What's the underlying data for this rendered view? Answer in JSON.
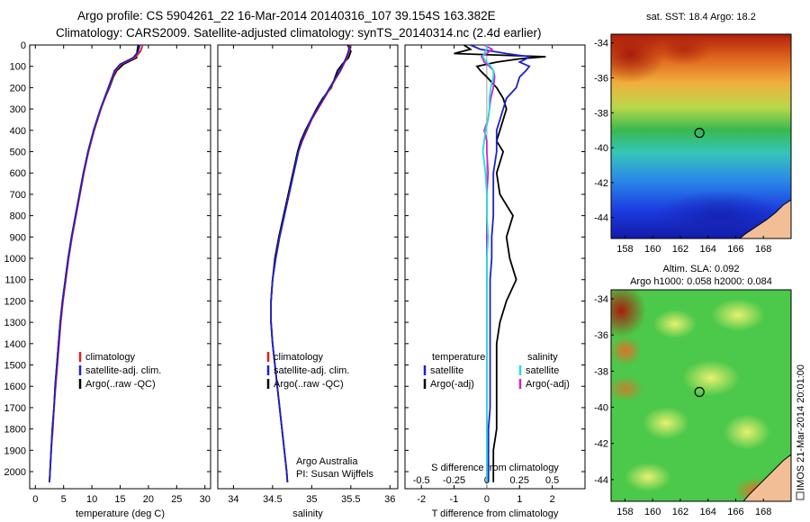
{
  "header": {
    "line1": "Argo profile: CS 5904261_22 16-Mar-2014 20140316_107 39.154S 163.382E",
    "line2": "Climatology: CARS2009. Satellite-adjusted climatology: synTS_20140314.nc (2.4d earlier)"
  },
  "credit": {
    "argo_australia": "Argo Australia",
    "pi": "PI: Susan Wijffels",
    "imos": "IMOS 21-Mar-2014 20:01:00"
  },
  "colors": {
    "climatology": "#e0201e",
    "satellite": "#1e22c8",
    "argo": "#000000",
    "sat_salinity": "#22dede",
    "argo_salinity": "#d020d0",
    "land": "#f2be96"
  },
  "chart_data": [
    {
      "type": "line",
      "id": "temperature",
      "xlabel": "temperature (deg C)",
      "ylabel": "",
      "xlim": [
        -1,
        31
      ],
      "ylim": [
        2080,
        0
      ],
      "xticks": [
        0,
        5,
        10,
        15,
        20,
        25,
        30
      ],
      "yticks": [
        0,
        100,
        200,
        300,
        400,
        500,
        600,
        700,
        800,
        900,
        1000,
        1100,
        1200,
        1300,
        1400,
        1500,
        1600,
        1700,
        1800,
        1900,
        2000
      ],
      "legend": {
        "position": "lower-middle",
        "entries": [
          "climatology",
          "satellite-adj. clim.",
          "Argo(..raw -QC)"
        ]
      },
      "y": [
        0,
        30,
        60,
        90,
        120,
        150,
        200,
        250,
        300,
        350,
        400,
        500,
        600,
        700,
        800,
        900,
        1000,
        1100,
        1200,
        1300,
        1400,
        1500,
        1600,
        1700,
        1800,
        1900,
        2000,
        2050
      ],
      "series": [
        {
          "name": "climatology",
          "x": [
            19.0,
            18.6,
            17.6,
            15.2,
            14.2,
            13.7,
            13.0,
            12.3,
            11.6,
            11.0,
            10.4,
            9.4,
            8.6,
            7.9,
            7.2,
            6.5,
            5.9,
            5.4,
            4.9,
            4.5,
            4.2,
            3.9,
            3.6,
            3.3,
            3.1,
            2.8,
            2.6,
            2.5
          ]
        },
        {
          "name": "satellite-adj. clim.",
          "x": [
            18.5,
            18.2,
            17.3,
            15.0,
            14.0,
            13.6,
            12.9,
            12.2,
            11.5,
            10.9,
            10.3,
            9.3,
            8.5,
            7.8,
            7.1,
            6.4,
            5.8,
            5.3,
            4.8,
            4.4,
            4.1,
            3.8,
            3.5,
            3.3,
            3.0,
            2.8,
            2.6,
            2.5
          ]
        },
        {
          "name": "Argo(..raw -QC)",
          "x": [
            18.2,
            18.0,
            17.9,
            15.6,
            14.4,
            13.8,
            13.1,
            12.3,
            11.6,
            11.0,
            10.4,
            9.4,
            8.5,
            7.8,
            7.1,
            6.4,
            5.8,
            5.3,
            4.8,
            4.4,
            4.1,
            3.8,
            3.5,
            3.3,
            3.0,
            2.8,
            2.6,
            2.5
          ]
        }
      ]
    },
    {
      "type": "line",
      "id": "salinity",
      "xlabel": "salinity",
      "ylabel": "",
      "xlim": [
        33.8,
        36.1
      ],
      "ylim": [
        2080,
        0
      ],
      "xticks": [
        34,
        34.5,
        35,
        35.5,
        36
      ],
      "legend": {
        "position": "lower-middle",
        "entries": [
          "climatology",
          "satellite-adj. clim.",
          "Argo(..raw -QC)"
        ]
      },
      "y": [
        0,
        30,
        60,
        90,
        120,
        150,
        200,
        250,
        300,
        350,
        400,
        450,
        500,
        600,
        700,
        800,
        900,
        1000,
        1100,
        1200,
        1300,
        1400,
        1500,
        1600,
        1700,
        1800,
        1900,
        2000,
        2050
      ],
      "series": [
        {
          "name": "climatology",
          "x": [
            35.49,
            35.48,
            35.45,
            35.41,
            35.37,
            35.32,
            35.24,
            35.16,
            35.08,
            35.0,
            34.94,
            34.88,
            34.83,
            34.77,
            34.71,
            34.65,
            34.59,
            34.54,
            34.5,
            34.48,
            34.48,
            34.5,
            34.53,
            34.56,
            34.59,
            34.62,
            34.65,
            34.68,
            34.69
          ]
        },
        {
          "name": "satellite-adj. clim.",
          "x": [
            35.48,
            35.47,
            35.44,
            35.4,
            35.36,
            35.31,
            35.23,
            35.15,
            35.07,
            34.99,
            34.93,
            34.87,
            34.83,
            34.77,
            34.71,
            34.65,
            34.59,
            34.54,
            34.5,
            34.48,
            34.48,
            34.5,
            34.53,
            34.56,
            34.59,
            34.62,
            34.65,
            34.68,
            34.69
          ]
        },
        {
          "name": "Argo(..raw -QC)",
          "x": [
            35.46,
            35.5,
            35.47,
            35.39,
            35.33,
            35.3,
            35.25,
            35.14,
            35.06,
            34.99,
            34.92,
            34.86,
            34.82,
            34.76,
            34.7,
            34.64,
            34.58,
            34.53,
            34.5,
            34.48,
            34.48,
            34.5,
            34.53,
            34.56,
            34.59,
            34.62,
            34.65,
            34.68,
            34.69
          ]
        }
      ]
    },
    {
      "type": "line",
      "id": "difference",
      "xlabel": "T difference from climatology",
      "xlabel_top": "S difference from climatology",
      "xlim": [
        -2.5,
        3.0
      ],
      "ylim": [
        2080,
        0
      ],
      "xticks": [
        -2,
        -1,
        0,
        1,
        2
      ],
      "xticks_salinity": [
        -0.5,
        -0.25,
        0,
        0.25,
        0.5
      ],
      "legend": {
        "position": "lower-middle",
        "entries": [
          "temperature",
          "satellite",
          "Argo(-adj)",
          "salinity",
          "satellite",
          "Argo(-adj)"
        ]
      },
      "y": [
        0,
        20,
        40,
        55,
        65,
        80,
        100,
        120,
        150,
        200,
        250,
        300,
        350,
        400,
        450,
        500,
        600,
        700,
        800,
        900,
        1000,
        1100,
        1200,
        1300,
        1400,
        1500,
        1600,
        1700,
        1800,
        1900,
        2000,
        2050
      ],
      "series": [
        {
          "name": "temperature satellite",
          "x": [
            -0.5,
            -0.2,
            0.6,
            1.3,
            1.2,
            1.0,
            1.3,
            1.2,
            1.0,
            0.9,
            0.6,
            0.5,
            0.4,
            0.3,
            0.3,
            0.3,
            0.2,
            0.2,
            0.2,
            0.15,
            0.15,
            0.1,
            0.1,
            0.1,
            0.1,
            0.1,
            0.1,
            0.1,
            0.05,
            0.05,
            0.05,
            0.05
          ]
        },
        {
          "name": "temperature Argo(-adj)",
          "x": [
            -0.7,
            -0.5,
            -1.0,
            1.8,
            1.0,
            0.3,
            -0.3,
            -0.2,
            0.0,
            0.3,
            0.5,
            0.6,
            0.5,
            0.4,
            0.3,
            0.5,
            0.3,
            0.4,
            0.8,
            0.6,
            0.7,
            0.9,
            0.6,
            0.4,
            0.3,
            0.3,
            0.3,
            0.3,
            0.3,
            0.2,
            0.2,
            0.2
          ]
        },
        {
          "name": "salinity satellite",
          "x": [
            0.0,
            0.0,
            -0.02,
            -0.03,
            -0.02,
            0.0,
            0.03,
            0.05,
            0.05,
            0.03,
            0.02,
            0.02,
            0.01,
            -0.01,
            -0.02,
            -0.03,
            -0.01,
            0.0,
            0.0,
            0.01,
            0.0,
            0.0,
            0.0,
            0.0,
            0.0,
            0.0,
            0.0,
            0.0,
            0.0,
            0.0,
            0.0,
            0.0
          ]
        },
        {
          "name": "salinity Argo(-adj)",
          "x": [
            -0.02,
            0.04,
            0.0,
            -0.04,
            -0.03,
            -0.02,
            0.02,
            0.05,
            0.06,
            0.05,
            0.03,
            0.02,
            0.01,
            -0.02,
            0.0,
            0.0,
            0.01,
            0.0,
            0.0,
            0.0,
            0.0,
            0.0,
            0.0,
            0.0,
            0.0,
            0.0,
            0.0,
            0.0,
            0.0,
            0.0,
            0.0,
            0.0
          ]
        }
      ]
    },
    {
      "type": "heatmap",
      "id": "sst_map",
      "title": "sat. SST: 18.4  Argo: 18.2",
      "xlim": [
        157,
        170
      ],
      "ylim": [
        -45.2,
        -33.5
      ],
      "xticks": [
        158,
        160,
        162,
        164,
        166,
        168
      ],
      "yticks": [
        -34,
        -36,
        -38,
        -40,
        -42,
        -44
      ],
      "marker": {
        "lon": 163.38,
        "lat": -39.15
      }
    },
    {
      "type": "heatmap",
      "id": "sla_map",
      "title": "Altim. SLA: 0.092",
      "subtitle": "Argo h1000: 0.058 h2000: 0.084",
      "xlim": [
        157,
        170
      ],
      "ylim": [
        -45.2,
        -33.5
      ],
      "xticks": [
        158,
        160,
        162,
        164,
        166,
        168
      ],
      "yticks": [
        -34,
        -36,
        -38,
        -40,
        -42,
        -44
      ],
      "marker": {
        "lon": 163.38,
        "lat": -39.15
      }
    }
  ]
}
